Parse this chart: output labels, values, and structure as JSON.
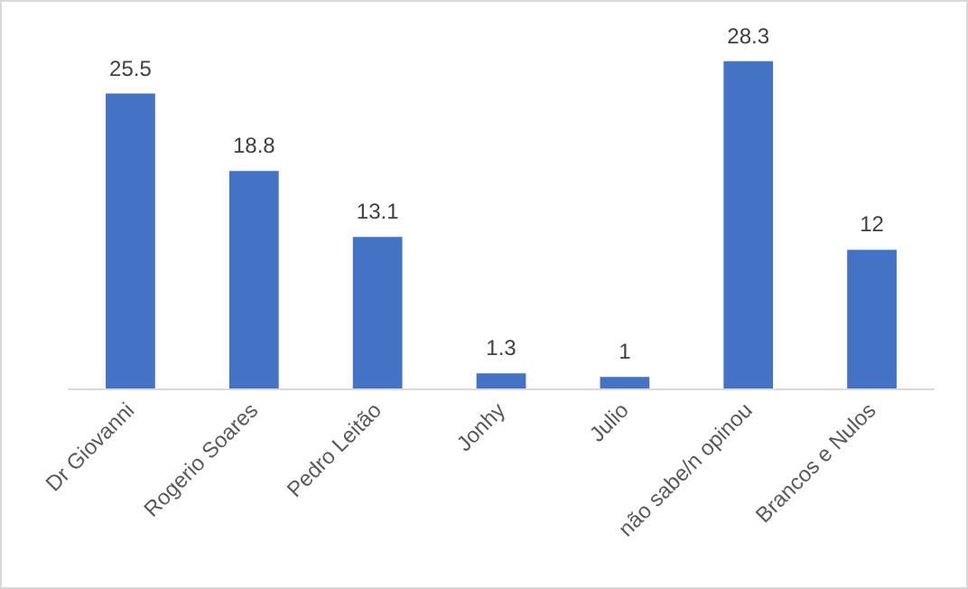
{
  "chart_data": {
    "type": "bar",
    "categories": [
      "Dr Giovanni",
      "Rogerio Soares",
      "Pedro Leitão",
      "Jonhy",
      "Julio",
      "não sabe/n opinou",
      "Brancos e Nulos"
    ],
    "values": [
      25.5,
      18.8,
      13.1,
      1.3,
      1,
      28.3,
      12
    ],
    "color": "#4472c4",
    "data_labels": true
  }
}
